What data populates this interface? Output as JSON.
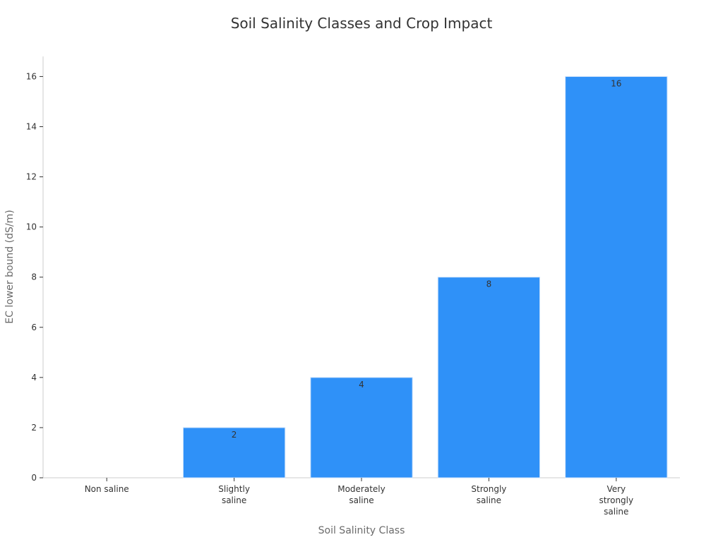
{
  "chart_data": {
    "type": "bar",
    "title": "Soil Salinity Classes and Crop Impact",
    "xlabel": "Soil Salinity Class",
    "ylabel": "EC lower bound (dS/m)",
    "categories": [
      [
        "Non saline"
      ],
      [
        "Slightly",
        "saline"
      ],
      [
        "Moderately",
        "saline"
      ],
      [
        "Strongly",
        "saline"
      ],
      [
        "Very",
        "strongly",
        "saline"
      ]
    ],
    "values": [
      0,
      2,
      4,
      8,
      16
    ],
    "data_labels": [
      "",
      "2",
      "4",
      "8",
      "16"
    ],
    "yticks": [
      0,
      2,
      4,
      6,
      8,
      10,
      12,
      14,
      16
    ],
    "ylim": [
      0,
      16.8
    ],
    "bar_color": "#2f91f8",
    "grid": false,
    "legend": "none"
  }
}
